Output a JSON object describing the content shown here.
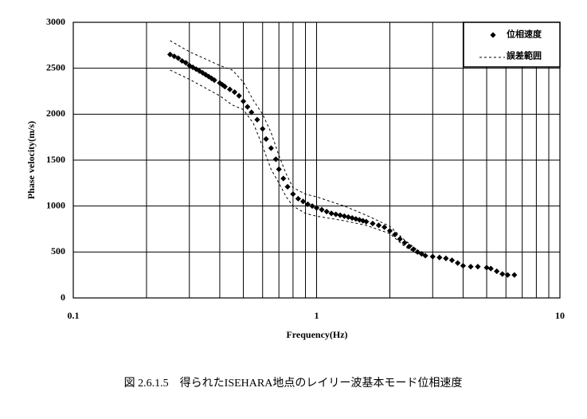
{
  "chart_data": {
    "type": "scatter",
    "caption": "図 2.6.1.5　得られたISEHARA地点のレイリー波基本モード位相速度",
    "xlabel": "Frequency(Hz)",
    "ylabel": "Phase velocity(m/s)",
    "xscale": "log",
    "grid": true,
    "legend": "upper right",
    "xlim": [
      0.1,
      10
    ],
    "xticks": [
      0.1,
      1,
      10
    ],
    "xminor": [
      0.2,
      0.3,
      0.4,
      0.5,
      0.6,
      0.7,
      0.8,
      0.9,
      2,
      3,
      4,
      5,
      6,
      7,
      8,
      9
    ],
    "ylim": [
      0,
      3000
    ],
    "yticks": [
      0,
      500,
      1000,
      1500,
      2000,
      2500,
      3000
    ],
    "series": [
      {
        "name": "位相速度",
        "color": "#000000",
        "marker": "diamond",
        "x": [
          0.25,
          0.26,
          0.27,
          0.28,
          0.29,
          0.3,
          0.31,
          0.32,
          0.33,
          0.34,
          0.35,
          0.36,
          0.37,
          0.38,
          0.4,
          0.41,
          0.42,
          0.44,
          0.46,
          0.48,
          0.5,
          0.52,
          0.54,
          0.57,
          0.6,
          0.62,
          0.65,
          0.68,
          0.7,
          0.73,
          0.76,
          0.8,
          0.84,
          0.88,
          0.92,
          0.96,
          1.0,
          1.05,
          1.1,
          1.15,
          1.2,
          1.25,
          1.3,
          1.35,
          1.4,
          1.45,
          1.5,
          1.55,
          1.6,
          1.7,
          1.8,
          1.9,
          2.0,
          2.1,
          2.2,
          2.3,
          2.4,
          2.5,
          2.6,
          2.7,
          2.8,
          3.0,
          3.2,
          3.4,
          3.6,
          3.8,
          4.0,
          4.3,
          4.6,
          5.0,
          5.2,
          5.5,
          5.8,
          6.1,
          6.5
        ],
        "values": [
          2650,
          2630,
          2610,
          2580,
          2560,
          2530,
          2510,
          2490,
          2470,
          2450,
          2430,
          2410,
          2390,
          2370,
          2340,
          2320,
          2300,
          2270,
          2240,
          2200,
          2140,
          2080,
          2020,
          1940,
          1840,
          1730,
          1630,
          1510,
          1400,
          1300,
          1210,
          1130,
          1080,
          1050,
          1020,
          1000,
          980,
          960,
          940,
          920,
          910,
          900,
          890,
          880,
          870,
          860,
          850,
          840,
          830,
          810,
          790,
          770,
          730,
          690,
          640,
          600,
          560,
          530,
          500,
          480,
          460,
          450,
          440,
          430,
          410,
          380,
          350,
          340,
          340,
          330,
          320,
          290,
          260,
          250,
          250
        ]
      },
      {
        "name": "誤差範囲",
        "color": "#000000",
        "dash": "3,3",
        "x": [
          0.25,
          0.3,
          0.4,
          0.45,
          0.5,
          0.55,
          0.6,
          0.65,
          0.7,
          0.75,
          0.8,
          0.9,
          1.0,
          1.3,
          1.6,
          2.0,
          2.3,
          2.6
        ],
        "upper": [
          2800,
          2680,
          2530,
          2480,
          2350,
          2150,
          2000,
          1800,
          1550,
          1350,
          1200,
          1130,
          1100,
          1000,
          900,
          780,
          630,
          520
        ],
        "lower": [
          2480,
          2380,
          2200,
          2100,
          2050,
          1900,
          1650,
          1400,
          1250,
          1100,
          1000,
          920,
          890,
          840,
          790,
          700,
          560,
          480
        ]
      }
    ]
  }
}
